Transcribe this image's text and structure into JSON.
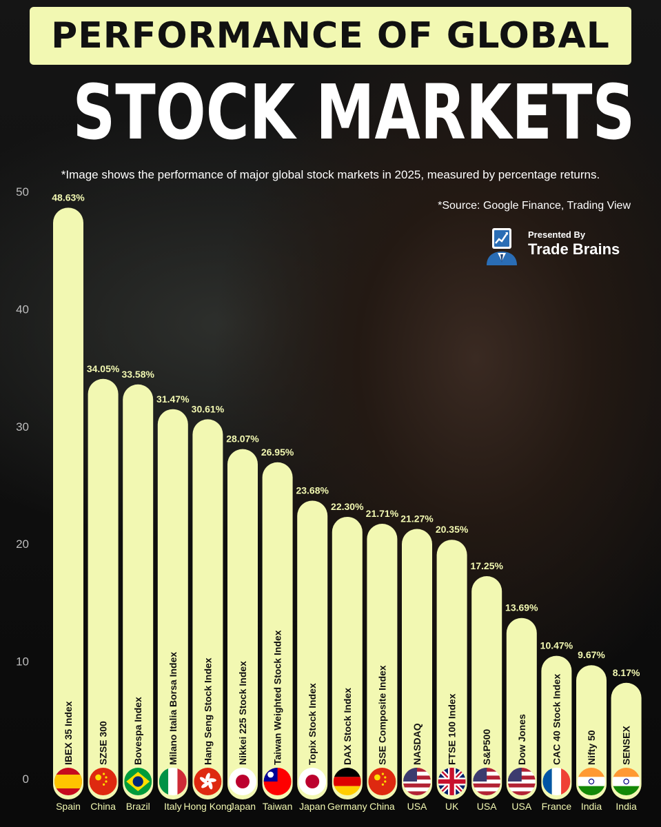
{
  "header": {
    "title_line1": "PERFORMANCE OF GLOBAL",
    "title_line2": "STOCK MARKETS",
    "subtitle": "*Image shows the performance of major global stock markets in 2025, measured by percentage returns.",
    "source": "*Source: Google Finance, Trading View"
  },
  "brand": {
    "presented_by": "Presented By",
    "name": "Trade Brains",
    "logo_icon": "chart-person-icon"
  },
  "colors": {
    "bar": "#f2f8b2",
    "title_band": "#f2f8b2",
    "value_label": "#f2f8b2",
    "background": "#0d0d0d"
  },
  "chart_data": {
    "type": "bar",
    "title": "PERFORMANCE OF GLOBAL STOCK MARKETS",
    "ylim": [
      0,
      50
    ],
    "yticks": [
      "0",
      "10",
      "20",
      "30",
      "40",
      "50"
    ],
    "categories": [
      "IBEX 35 Index",
      "SZSE 300",
      "Bovespa Index",
      "Milano Italia Borsa Index",
      "Hang Seng Stock Index",
      "Nikkei 225 Stock Index",
      "Taiwan Weighted Stock Index",
      "Topix Stock Index",
      "DAX Stock Index",
      "SSE Composite Index",
      "NASDAQ",
      "FTSE 100 Index",
      "S&P500",
      "Dow Jones",
      "CAC 40 Stock Index",
      "Nifty 50",
      "SENSEX"
    ],
    "countries": [
      "Spain",
      "China",
      "Brazil",
      "Italy",
      "Hong Kong",
      "Japan",
      "Taiwan",
      "Japan",
      "Germany",
      "China",
      "USA",
      "UK",
      "USA",
      "USA",
      "France",
      "India",
      "India"
    ],
    "flag_icons": [
      "spain-flag-icon",
      "china-flag-icon",
      "brazil-flag-icon",
      "italy-flag-icon",
      "hong-kong-flag-icon",
      "japan-flag-icon",
      "taiwan-flag-icon",
      "japan-flag-icon",
      "germany-flag-icon",
      "china-flag-icon",
      "usa-flag-icon",
      "uk-flag-icon",
      "usa-flag-icon",
      "usa-flag-icon",
      "france-flag-icon",
      "india-flag-icon",
      "india-flag-icon"
    ],
    "values": [
      48.63,
      34.05,
      33.58,
      31.47,
      30.61,
      28.07,
      26.95,
      23.68,
      22.3,
      21.71,
      21.27,
      20.35,
      17.25,
      13.69,
      10.47,
      9.67,
      8.17
    ],
    "value_labels": [
      "48.63%",
      "34.05%",
      "33.58%",
      "31.47%",
      "30.61%",
      "28.07%",
      "26.95%",
      "23.68%",
      "22.30%",
      "21.71%",
      "21.27%",
      "20.35%",
      "17.25%",
      "13.69%",
      "10.47%",
      "9.67%",
      "8.17%"
    ],
    "grid": false
  }
}
